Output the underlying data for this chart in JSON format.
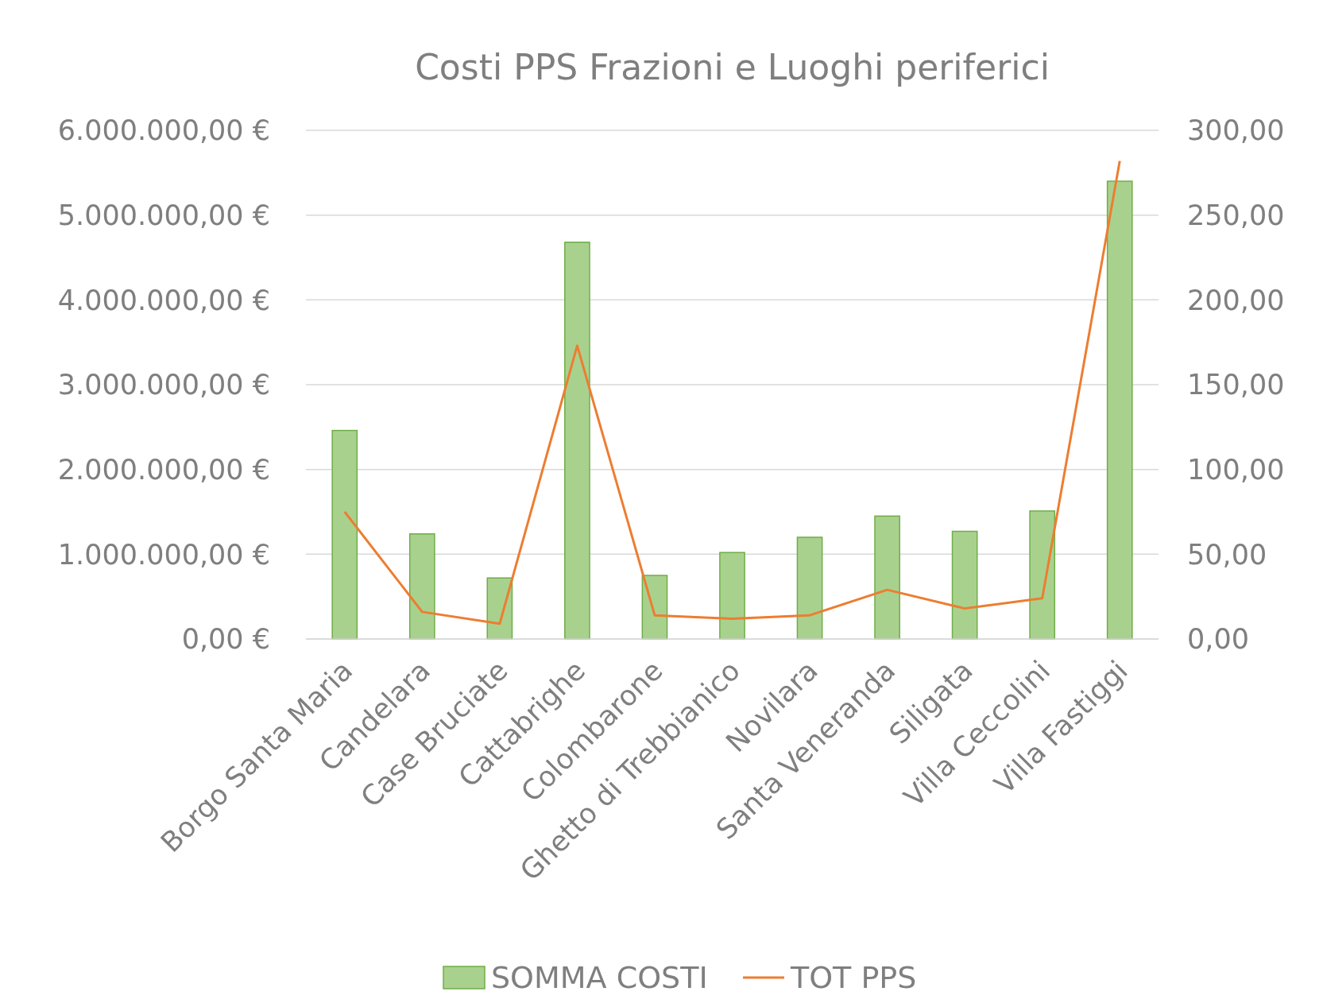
{
  "chart_data": {
    "type": "bar",
    "title": "Costi PPS Frazioni e Luoghi periferici",
    "categories": [
      "Borgo Santa Maria",
      "Candelara",
      "Case Bruciate",
      "Cattabrighe",
      "Colombarone",
      "Ghetto di Trebbianico",
      "Novilara",
      "Santa Veneranda",
      "Siligata",
      "Villa Ceccolini",
      "Villa Fastiggi"
    ],
    "series": [
      {
        "name": "SOMMA COSTI",
        "color": "#a9d18e",
        "values": [
          2460000,
          1240000,
          720000,
          4680000,
          750000,
          1020000,
          1200000,
          1450000,
          1270000,
          1510000,
          5400000
        ]
      },
      {
        "name": "TOT PPS",
        "type": "line",
        "axis": "y2",
        "color": "#ed7d31",
        "values": [
          75,
          16,
          9,
          173,
          14,
          12,
          14,
          29,
          18,
          24,
          282
        ]
      }
    ],
    "ylim": [
      0,
      6000000
    ],
    "yticks": [
      {
        "value": 0,
        "label": "0,00 €"
      },
      {
        "value": 1000000,
        "label": "1.000.000,00 €"
      },
      {
        "value": 2000000,
        "label": "2.000.000,00 €"
      },
      {
        "value": 3000000,
        "label": "3.000.000,00 €"
      },
      {
        "value": 4000000,
        "label": "4.000.000,00 €"
      },
      {
        "value": 5000000,
        "label": "5.000.000,00 €"
      },
      {
        "value": 6000000,
        "label": "6.000.000,00 €"
      }
    ],
    "y2lim": [
      0,
      300
    ],
    "y2ticks": [
      {
        "value": 0,
        "label": "0,00"
      },
      {
        "value": 50,
        "label": "50,00"
      },
      {
        "value": 100,
        "label": "100,00"
      },
      {
        "value": 150,
        "label": "150,00"
      },
      {
        "value": 200,
        "label": "200,00"
      },
      {
        "value": 250,
        "label": "250,00"
      },
      {
        "value": 300,
        "label": "300,00"
      }
    ],
    "grid": "y",
    "legend": "bottom",
    "marker": "none",
    "line_style": "solid"
  }
}
